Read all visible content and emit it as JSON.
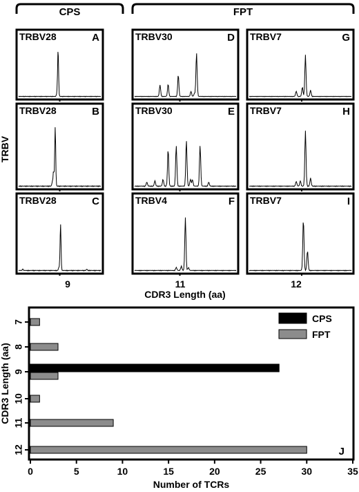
{
  "chart_data": [
    {
      "type": "line",
      "groups": [
        {
          "label": "CPS",
          "column": 0
        },
        {
          "label": "FPT",
          "columns": [
            1,
            2
          ]
        }
      ],
      "ylabel": "TRBV",
      "xlabel": "CDR3 Length (aa)",
      "column_ticks": [
        "9",
        "11",
        "12"
      ],
      "panels": [
        {
          "id": "A",
          "label": "TRBV28",
          "col": 0,
          "row": 0,
          "peaks": [
            {
              "pos": 0.48,
              "h": 0.91
            },
            {
              "pos": 0.465,
              "h": 0.05
            }
          ]
        },
        {
          "id": "B",
          "label": "TRBV28",
          "col": 0,
          "row": 1,
          "peaks": [
            {
              "pos": 0.445,
              "h": 0.87
            },
            {
              "pos": 0.425,
              "h": 0.22
            },
            {
              "pos": 0.41,
              "h": 0.06
            }
          ]
        },
        {
          "id": "C",
          "label": "TRBV28",
          "col": 0,
          "row": 2,
          "peaks": [
            {
              "pos": 0.51,
              "h": 0.75
            },
            {
              "pos": 0.49,
              "h": 0.05
            },
            {
              "pos": 0.05,
              "h": 0.02
            },
            {
              "pos": 0.83,
              "h": 0.02
            }
          ]
        },
        {
          "id": "D",
          "label": "TRBV30",
          "col": 1,
          "row": 0,
          "peaks": [
            {
              "pos": 0.25,
              "h": 0.22
            },
            {
              "pos": 0.33,
              "h": 0.24
            },
            {
              "pos": 0.43,
              "h": 0.42
            },
            {
              "pos": 0.555,
              "h": 0.1
            },
            {
              "pos": 0.59,
              "h": 0.06
            },
            {
              "pos": 0.61,
              "h": 0.84
            }
          ]
        },
        {
          "id": "E",
          "label": "TRBV30",
          "col": 1,
          "row": 1,
          "peaks": [
            {
              "pos": 0.33,
              "h": 0.55
            },
            {
              "pos": 0.41,
              "h": 0.6
            },
            {
              "pos": 0.51,
              "h": 0.68
            },
            {
              "pos": 0.55,
              "h": 0.1
            },
            {
              "pos": 0.57,
              "h": 0.1
            },
            {
              "pos": 0.645,
              "h": 0.6
            },
            {
              "pos": 0.12,
              "h": 0.06
            },
            {
              "pos": 0.2,
              "h": 0.08
            },
            {
              "pos": 0.28,
              "h": 0.1
            },
            {
              "pos": 0.73,
              "h": 0.06
            }
          ]
        },
        {
          "id": "F",
          "label": "TRBV4",
          "col": 1,
          "row": 2,
          "peaks": [
            {
              "pos": 0.5,
              "h": 0.85
            },
            {
              "pos": 0.41,
              "h": 0.05
            },
            {
              "pos": 0.46,
              "h": 0.07
            },
            {
              "pos": 0.53,
              "h": 0.05
            }
          ]
        },
        {
          "id": "G",
          "label": "TRBV7",
          "col": 2,
          "row": 0,
          "peaks": [
            {
              "pos": 0.55,
              "h": 0.8
            },
            {
              "pos": 0.46,
              "h": 0.1
            },
            {
              "pos": 0.52,
              "h": 0.18
            },
            {
              "pos": 0.6,
              "h": 0.12
            }
          ]
        },
        {
          "id": "H",
          "label": "TRBV7",
          "col": 2,
          "row": 1,
          "peaks": [
            {
              "pos": 0.55,
              "h": 0.82
            },
            {
              "pos": 0.6,
              "h": 0.12
            },
            {
              "pos": 0.46,
              "h": 0.07
            },
            {
              "pos": 0.5,
              "h": 0.08
            }
          ]
        },
        {
          "id": "I",
          "label": "TRBV7",
          "col": 2,
          "row": 2,
          "peaks": [
            {
              "pos": 0.53,
              "h": 0.83
            },
            {
              "pos": 0.57,
              "h": 0.32
            }
          ]
        }
      ]
    },
    {
      "type": "bar",
      "orientation": "horizontal",
      "panel_letter": "J",
      "xlabel": "Number of TCRs",
      "ylabel": "CDR3 Length (aa)",
      "categories": [
        "7",
        "8",
        "9",
        "10",
        "11",
        "12"
      ],
      "series": [
        {
          "name": "CPS",
          "color": "#000000",
          "values": [
            0,
            0,
            27,
            0,
            0,
            0
          ]
        },
        {
          "name": "FPT",
          "color": "#8c8c8c",
          "values": [
            1,
            3,
            3,
            1,
            9,
            30
          ]
        }
      ],
      "xlim": [
        0,
        35
      ],
      "xticks": [
        "0",
        "5",
        "10",
        "15",
        "20",
        "25",
        "30",
        "35"
      ],
      "legend_position": "top-right",
      "grid": false
    }
  ]
}
